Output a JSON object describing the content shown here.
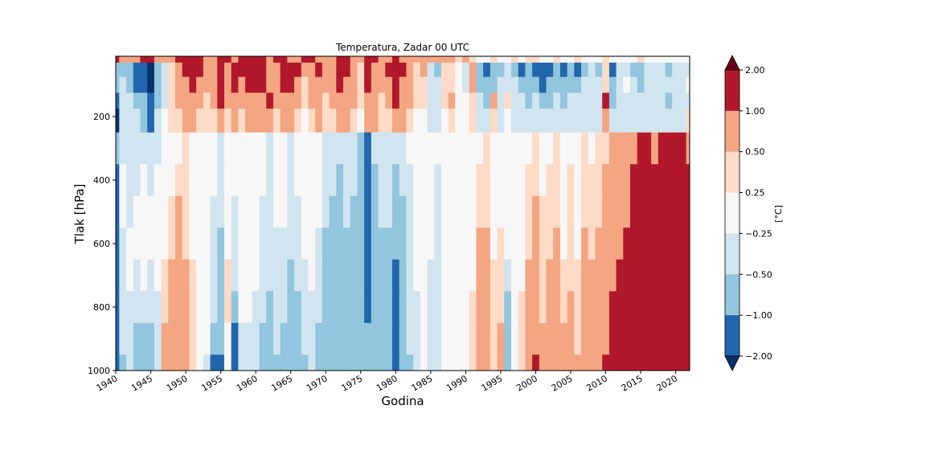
{
  "chart_data": {
    "type": "heatmap",
    "title": "Temperatura, Zadar 00 UTC",
    "xlabel": "Godina",
    "ylabel": "Tlak [hPa]",
    "xlim": [
      1940,
      2022
    ],
    "ylim": [
      1000,
      10
    ],
    "y_inverted": true,
    "x_ticks": [
      "1940",
      "1945",
      "1950",
      "1955",
      "1960",
      "1965",
      "1970",
      "1975",
      "1980",
      "1985",
      "1990",
      "1995",
      "2000",
      "2005",
      "2010",
      "2015",
      "2020"
    ],
    "x_tick_values": [
      1940,
      1945,
      1950,
      1955,
      1960,
      1965,
      1970,
      1975,
      1980,
      1985,
      1990,
      1995,
      2000,
      2005,
      2010,
      2015,
      2020
    ],
    "y_ticks": [
      "200",
      "400",
      "600",
      "800",
      "1000"
    ],
    "y_tick_values": [
      200,
      400,
      600,
      800,
      1000
    ],
    "colorbar": {
      "label": "[°C]",
      "levels": [
        -2.0,
        -1.0,
        -0.5,
        -0.25,
        0.25,
        0.5,
        1.0,
        2.0
      ],
      "level_labels": [
        "−2.00",
        "−1.00",
        "−0.50",
        "−0.25",
        "0.25",
        "0.50",
        "1.00",
        "2.00"
      ],
      "colors": [
        "#08306b",
        "#2166ac",
        "#92c5de",
        "#d1e5f0",
        "#f7f7f7",
        "#fddbc7",
        "#f4a582",
        "#b2182b",
        "#67001f"
      ],
      "extend": "both"
    },
    "x": [
      1940,
      1941,
      1942,
      1943,
      1944,
      1945,
      1946,
      1947,
      1948,
      1949,
      1950,
      1951,
      1952,
      1953,
      1954,
      1955,
      1956,
      1957,
      1958,
      1959,
      1960,
      1961,
      1962,
      1963,
      1964,
      1965,
      1966,
      1967,
      1968,
      1969,
      1970,
      1971,
      1972,
      1973,
      1974,
      1975,
      1976,
      1977,
      1978,
      1979,
      1980,
      1981,
      1982,
      1983,
      1984,
      1985,
      1986,
      1987,
      1988,
      1989,
      1990,
      1991,
      1992,
      1993,
      1994,
      1995,
      1996,
      1997,
      1998,
      1999,
      2000,
      2001,
      2002,
      2003,
      2004,
      2005,
      2006,
      2007,
      2008,
      2009,
      2010,
      2011,
      2012,
      2013,
      2014,
      2015,
      2016,
      2017,
      2018,
      2019,
      2020,
      2021,
      2022
    ],
    "y": [
      10,
      50,
      100,
      150,
      200,
      300,
      400,
      500,
      600,
      700,
      800,
      900,
      1000
    ],
    "z": [
      [
        1.2,
        0.8,
        0.6,
        0.9,
        1.3,
        1.1,
        0.7,
        0.5,
        0.9,
        1.2,
        1.0,
        1.4,
        1.1,
        0.8,
        0.6,
        1.2,
        1.0,
        0.9,
        1.3,
        1.5,
        1.2,
        1.0,
        0.8,
        1.1,
        1.3,
        0.9,
        0.7,
        1.0,
        1.2,
        0.8,
        0.6,
        0.9,
        1.1,
        1.3,
        0.9,
        0.7,
        1.0,
        1.2,
        0.9,
        0.8,
        1.1,
        0.9,
        0.7,
        0.6,
        0.8,
        0.5,
        0.7,
        0.9,
        0.6,
        0.4,
        0.5,
        0.3,
        0.2,
        0.1,
        0.3,
        0.2,
        0.1,
        0.3,
        0.2,
        0.4,
        0.3,
        0.1,
        0.2,
        0.3,
        0.2,
        0.1,
        0.3,
        0.2,
        0.1,
        0.2,
        0.3,
        0.1,
        0.2,
        0.1,
        0.2,
        0.3,
        0.1,
        0.2,
        0.1,
        0.2,
        0.1,
        0.2,
        0.1
      ],
      [
        -0.8,
        -0.6,
        -0.9,
        -1.2,
        -1.5,
        -2.2,
        -1.0,
        -0.4,
        0.3,
        0.8,
        1.2,
        1.5,
        1.0,
        0.6,
        0.9,
        1.3,
        0.8,
        1.4,
        1.1,
        1.6,
        1.3,
        1.5,
        0.9,
        0.7,
        1.2,
        1.4,
        1.0,
        0.5,
        0.8,
        1.1,
        0.6,
        0.9,
        1.3,
        1.0,
        0.8,
        0.4,
        1.3,
        0.9,
        0.6,
        1.0,
        1.2,
        1.1,
        0.7,
        0.3,
        0.5,
        -0.4,
        -0.6,
        0.3,
        0.4,
        0.2,
        -0.3,
        0.6,
        -0.9,
        -1.2,
        -0.8,
        -0.6,
        -0.4,
        -0.7,
        -1.1,
        -0.9,
        -1.3,
        -1.6,
        -1.2,
        -1.0,
        -1.4,
        -0.8,
        -1.1,
        -0.6,
        -0.5,
        -0.7,
        0.3,
        -1.2,
        -0.4,
        -0.3,
        -0.6,
        -0.7,
        -0.3,
        -0.4,
        -0.5,
        -0.6,
        -0.3,
        -0.4,
        -0.3
      ],
      [
        -0.6,
        -0.5,
        -0.8,
        -1.1,
        -1.3,
        -2.1,
        -0.9,
        -0.3,
        0.4,
        0.7,
        0.9,
        1.2,
        0.8,
        0.5,
        0.7,
        1.0,
        0.6,
        1.1,
        0.9,
        1.2,
        1.0,
        1.2,
        0.7,
        0.6,
        1.0,
        1.1,
        0.8,
        0.4,
        0.7,
        0.9,
        0.5,
        0.7,
        1.0,
        0.8,
        0.7,
        0.4,
        1.1,
        0.8,
        0.5,
        0.8,
        1.1,
        0.9,
        0.6,
        0.3,
        0.4,
        -0.3,
        -0.5,
        0.3,
        0.3,
        0.2,
        -0.3,
        0.5,
        -0.7,
        -1.0,
        -0.6,
        -0.5,
        -0.3,
        -0.5,
        -0.8,
        -0.7,
        -0.9,
        -1.2,
        -0.9,
        -0.7,
        -0.9,
        -0.6,
        -0.8,
        -0.5,
        -0.4,
        -0.5,
        0.4,
        -1.0,
        -0.3,
        -0.2,
        -0.5,
        -0.6,
        -0.3,
        -0.3,
        -0.4,
        -0.5,
        -0.3,
        -0.3,
        -0.2
      ],
      [
        -1.2,
        -0.5,
        -0.4,
        -0.6,
        -0.9,
        -1.5,
        -0.7,
        -0.3,
        0.3,
        0.6,
        0.7,
        0.9,
        0.6,
        0.4,
        0.6,
        1.1,
        0.5,
        0.8,
        0.6,
        0.9,
        0.7,
        0.8,
        1.2,
        0.5,
        0.7,
        0.9,
        0.6,
        0.3,
        0.5,
        0.7,
        0.4,
        0.6,
        0.8,
        0.7,
        0.5,
        0.3,
        0.9,
        0.7,
        0.4,
        0.6,
        1.2,
        0.8,
        0.5,
        0.3,
        0.3,
        -0.3,
        -0.4,
        0.3,
        0.6,
        0.2,
        -0.2,
        0.4,
        -0.5,
        -0.6,
        0.5,
        -0.4,
        0.3,
        -0.4,
        -0.5,
        -0.6,
        -0.4,
        -0.7,
        -0.6,
        -0.5,
        -0.6,
        -0.4,
        -0.5,
        -0.4,
        -0.3,
        -0.4,
        1.1,
        -0.6,
        -0.3,
        -0.3,
        -0.5,
        -0.4,
        -0.3,
        -0.4,
        -0.3,
        -0.6,
        -0.3,
        -0.4,
        -0.3
      ],
      [
        -2.2,
        -0.4,
        -0.3,
        -0.4,
        -0.6,
        -1.1,
        -0.5,
        -0.2,
        0.3,
        0.4,
        0.5,
        0.6,
        0.4,
        0.3,
        0.4,
        0.8,
        0.3,
        0.5,
        0.4,
        0.6,
        0.5,
        0.6,
        0.9,
        0.4,
        0.5,
        0.6,
        0.4,
        0.2,
        0.4,
        0.5,
        0.3,
        0.4,
        0.5,
        0.5,
        0.4,
        0.2,
        0.6,
        0.5,
        0.3,
        0.4,
        0.8,
        0.5,
        0.4,
        0.2,
        0.2,
        -0.3,
        -0.3,
        0.2,
        0.4,
        0.1,
        -0.2,
        0.3,
        -0.4,
        -0.4,
        0.3,
        -0.3,
        0.2,
        -0.3,
        -0.4,
        -0.4,
        -0.3,
        -0.5,
        -0.4,
        -0.4,
        -0.4,
        -0.3,
        -0.4,
        -0.3,
        -0.3,
        -0.3,
        0.8,
        -0.4,
        -0.3,
        -0.3,
        -0.4,
        -0.3,
        -0.3,
        -0.3,
        -0.3,
        -0.4,
        -0.3,
        -0.3,
        0.3
      ],
      [
        -0.8,
        -0.3,
        -0.3,
        -0.4,
        -0.3,
        -0.4,
        -0.3,
        -0.1,
        0.1,
        0.2,
        0.3,
        0.2,
        0.1,
        0.0,
        -0.2,
        -0.3,
        0.1,
        -0.1,
        0.2,
        0.1,
        0.0,
        -0.2,
        -0.3,
        -0.1,
        0.0,
        -0.3,
        -0.2,
        -0.1,
        0.1,
        0.0,
        -0.3,
        -0.4,
        -0.5,
        -0.4,
        -0.3,
        -0.6,
        -1.3,
        -0.5,
        -0.4,
        -0.3,
        -0.5,
        -0.4,
        -0.2,
        0.0,
        0.1,
        -0.1,
        -0.2,
        0.0,
        0.0,
        0.1,
        0.0,
        0.1,
        0.2,
        0.3,
        0.1,
        0.2,
        0.1,
        0.0,
        0.1,
        0.2,
        0.3,
        0.1,
        0.2,
        0.3,
        0.1,
        0.2,
        0.1,
        0.3,
        0.2,
        0.3,
        0.4,
        0.5,
        0.6,
        0.7,
        0.9,
        1.1,
        1.3,
        0.9,
        1.2,
        1.4,
        1.2,
        1.0,
        0.9
      ],
      [
        -1.1,
        -0.2,
        -0.3,
        -0.3,
        -0.2,
        -0.3,
        -0.2,
        0.0,
        0.2,
        0.4,
        0.3,
        0.2,
        0.1,
        0.0,
        -0.2,
        -0.4,
        0.1,
        -0.2,
        0.1,
        0.0,
        0.0,
        -0.2,
        -0.3,
        -0.1,
        -0.1,
        -0.3,
        -0.2,
        -0.1,
        0.1,
        -0.1,
        -0.4,
        -0.5,
        -0.6,
        -0.5,
        -0.5,
        -0.7,
        -1.4,
        -0.6,
        -0.5,
        -0.4,
        -0.6,
        -0.5,
        -0.3,
        0.0,
        0.1,
        -0.1,
        -0.3,
        0.0,
        0.0,
        0.1,
        0.0,
        0.1,
        0.3,
        0.4,
        0.1,
        0.2,
        0.1,
        0.0,
        0.1,
        0.3,
        0.4,
        0.2,
        0.3,
        0.4,
        0.2,
        0.3,
        0.2,
        0.4,
        0.3,
        0.4,
        0.5,
        0.6,
        0.7,
        0.8,
        1.1,
        1.3,
        1.5,
        1.0,
        1.4,
        1.6,
        1.3,
        1.2,
        1.1
      ],
      [
        -1.2,
        -0.2,
        -0.3,
        -0.2,
        -0.1,
        -0.2,
        -0.1,
        0.1,
        0.3,
        0.5,
        0.3,
        0.2,
        0.1,
        0.0,
        -0.3,
        -0.5,
        0.1,
        -0.3,
        0.1,
        0.0,
        -0.1,
        -0.3,
        -0.4,
        -0.2,
        -0.2,
        -0.4,
        -0.3,
        -0.1,
        0.0,
        -0.2,
        -0.5,
        -0.6,
        -0.6,
        -0.5,
        -0.6,
        -0.7,
        -1.4,
        -0.6,
        -0.5,
        -0.5,
        -0.7,
        -0.6,
        -0.3,
        -0.1,
        0.1,
        -0.2,
        -0.3,
        0.0,
        0.0,
        0.1,
        0.0,
        0.1,
        0.4,
        0.4,
        0.1,
        0.2,
        0.1,
        0.0,
        0.1,
        0.3,
        0.5,
        0.3,
        0.3,
        0.4,
        0.2,
        0.3,
        0.2,
        0.4,
        0.3,
        0.4,
        0.6,
        0.7,
        0.8,
        0.9,
        1.2,
        1.4,
        1.6,
        1.1,
        1.5,
        1.7,
        1.4,
        1.3,
        1.2
      ],
      [
        -1.3,
        -0.3,
        -0.2,
        -0.2,
        -0.1,
        -0.2,
        -0.1,
        0.2,
        0.4,
        0.6,
        0.4,
        0.2,
        0.1,
        0.0,
        -0.3,
        -0.6,
        0.2,
        -0.3,
        0.1,
        0.0,
        -0.1,
        -0.3,
        -0.4,
        -0.3,
        -0.3,
        -0.5,
        -0.4,
        -0.2,
        0.0,
        -0.3,
        -0.6,
        -0.6,
        -0.7,
        -0.6,
        -0.6,
        -0.8,
        -1.3,
        -0.7,
        -0.6,
        -0.6,
        -0.8,
        -0.7,
        -0.4,
        -0.1,
        0.1,
        -0.2,
        -0.3,
        0.0,
        0.0,
        0.1,
        0.1,
        0.2,
        0.5,
        0.5,
        0.2,
        0.3,
        0.1,
        0.0,
        0.2,
        0.4,
        0.6,
        0.3,
        0.4,
        0.5,
        0.2,
        0.3,
        0.2,
        0.5,
        0.4,
        0.5,
        0.6,
        0.8,
        0.9,
        1.0,
        1.3,
        1.5,
        1.7,
        1.2,
        1.6,
        1.8,
        1.5,
        1.4,
        1.3
      ],
      [
        -1.4,
        -0.3,
        -0.2,
        -0.3,
        -0.2,
        -0.3,
        -0.2,
        0.3,
        0.6,
        0.8,
        0.5,
        0.3,
        0.1,
        0.0,
        -0.4,
        -0.7,
        0.3,
        -0.4,
        0.2,
        0.0,
        -0.2,
        -0.4,
        -0.5,
        -0.3,
        -0.4,
        -0.6,
        -0.5,
        -0.3,
        -0.1,
        -0.4,
        -0.6,
        -0.7,
        -0.8,
        -0.7,
        -0.7,
        -0.8,
        -1.2,
        -0.7,
        -0.6,
        -0.6,
        -1.3,
        -0.8,
        -0.4,
        -0.2,
        0.0,
        -0.3,
        -0.4,
        -0.1,
        0.0,
        0.1,
        0.1,
        0.2,
        0.5,
        0.6,
        0.3,
        0.3,
        -0.5,
        0.0,
        0.2,
        0.5,
        0.7,
        0.4,
        0.5,
        0.6,
        0.3,
        0.4,
        0.3,
        0.6,
        0.5,
        0.6,
        0.7,
        0.9,
        1.0,
        1.1,
        1.4,
        1.6,
        1.8,
        1.3,
        1.7,
        1.9,
        1.6,
        1.5,
        1.4
      ],
      [
        -1.5,
        -0.4,
        -0.3,
        -0.5,
        -0.4,
        -0.4,
        -0.3,
        0.4,
        0.8,
        0.9,
        0.6,
        0.3,
        0.1,
        0.0,
        -0.5,
        -0.8,
        0.3,
        -0.6,
        0.2,
        -0.1,
        -0.3,
        -0.5,
        -0.6,
        -0.4,
        -0.5,
        -0.6,
        -0.6,
        -0.4,
        -0.3,
        -0.5,
        -0.6,
        -0.7,
        -0.8,
        -0.7,
        -0.8,
        -0.8,
        -1.1,
        -0.7,
        -0.6,
        -0.7,
        -1.5,
        -0.9,
        -0.5,
        -0.3,
        0.0,
        -0.3,
        -0.5,
        -0.1,
        0.0,
        0.1,
        0.2,
        0.3,
        0.6,
        0.7,
        0.3,
        0.4,
        -0.6,
        0.1,
        0.3,
        0.6,
        0.7,
        0.4,
        0.5,
        0.6,
        0.4,
        0.5,
        0.3,
        0.7,
        0.6,
        0.7,
        0.8,
        1.1,
        1.2,
        1.3,
        1.6,
        1.8,
        1.9,
        1.5,
        1.8,
        1.9,
        1.8,
        1.6,
        1.5
      ],
      [
        -1.6,
        -0.5,
        -0.4,
        -0.8,
        -0.6,
        -0.6,
        -0.4,
        0.5,
        0.7,
        0.8,
        0.5,
        0.3,
        0.0,
        -0.2,
        -0.8,
        -1.0,
        0.2,
        -1.2,
        -0.3,
        -0.3,
        -0.4,
        -0.6,
        -0.6,
        -0.5,
        -0.6,
        -0.7,
        -0.6,
        -0.5,
        -0.4,
        -0.6,
        -0.6,
        -0.7,
        -0.8,
        -0.7,
        -0.8,
        -0.7,
        -0.9,
        -0.6,
        -0.6,
        -0.7,
        -1.4,
        -0.8,
        -0.5,
        -0.3,
        0.0,
        -0.3,
        -0.5,
        -0.1,
        0.0,
        0.1,
        0.2,
        0.4,
        0.7,
        0.8,
        0.4,
        0.5,
        -0.7,
        0.1,
        0.4,
        0.7,
        0.8,
        0.5,
        0.6,
        0.7,
        0.5,
        0.6,
        0.4,
        0.8,
        0.7,
        0.8,
        0.9,
        1.3,
        1.4,
        1.5,
        1.7,
        1.9,
        1.9,
        1.6,
        1.9,
        1.9,
        1.9,
        1.7,
        1.6
      ],
      [
        -1.7,
        -0.6,
        -0.5,
        -1.0,
        -0.8,
        -0.7,
        -0.5,
        0.6,
        0.8,
        0.9,
        0.6,
        0.3,
        -0.1,
        -0.4,
        -1.2,
        -1.3,
        0.1,
        -1.5,
        -0.5,
        -0.4,
        -0.5,
        -0.6,
        -0.7,
        -0.6,
        -0.7,
        -0.7,
        -0.6,
        -0.6,
        -0.5,
        -0.7,
        -0.6,
        -0.7,
        -0.8,
        -0.7,
        -0.8,
        -0.7,
        -0.9,
        -0.6,
        -0.7,
        -0.8,
        -1.3,
        -0.8,
        -0.6,
        -0.4,
        -0.1,
        -0.3,
        -0.5,
        -0.1,
        0.0,
        0.1,
        0.2,
        0.4,
        0.8,
        0.9,
        0.4,
        0.5,
        -0.8,
        0.1,
        0.4,
        0.7,
        1.2,
        0.5,
        0.6,
        0.7,
        0.6,
        0.7,
        0.5,
        0.9,
        0.8,
        0.9,
        1.0,
        1.4,
        1.5,
        1.6,
        1.8,
        1.9,
        1.9,
        1.7,
        1.9,
        1.9,
        1.9,
        1.8,
        1.7
      ]
    ]
  }
}
